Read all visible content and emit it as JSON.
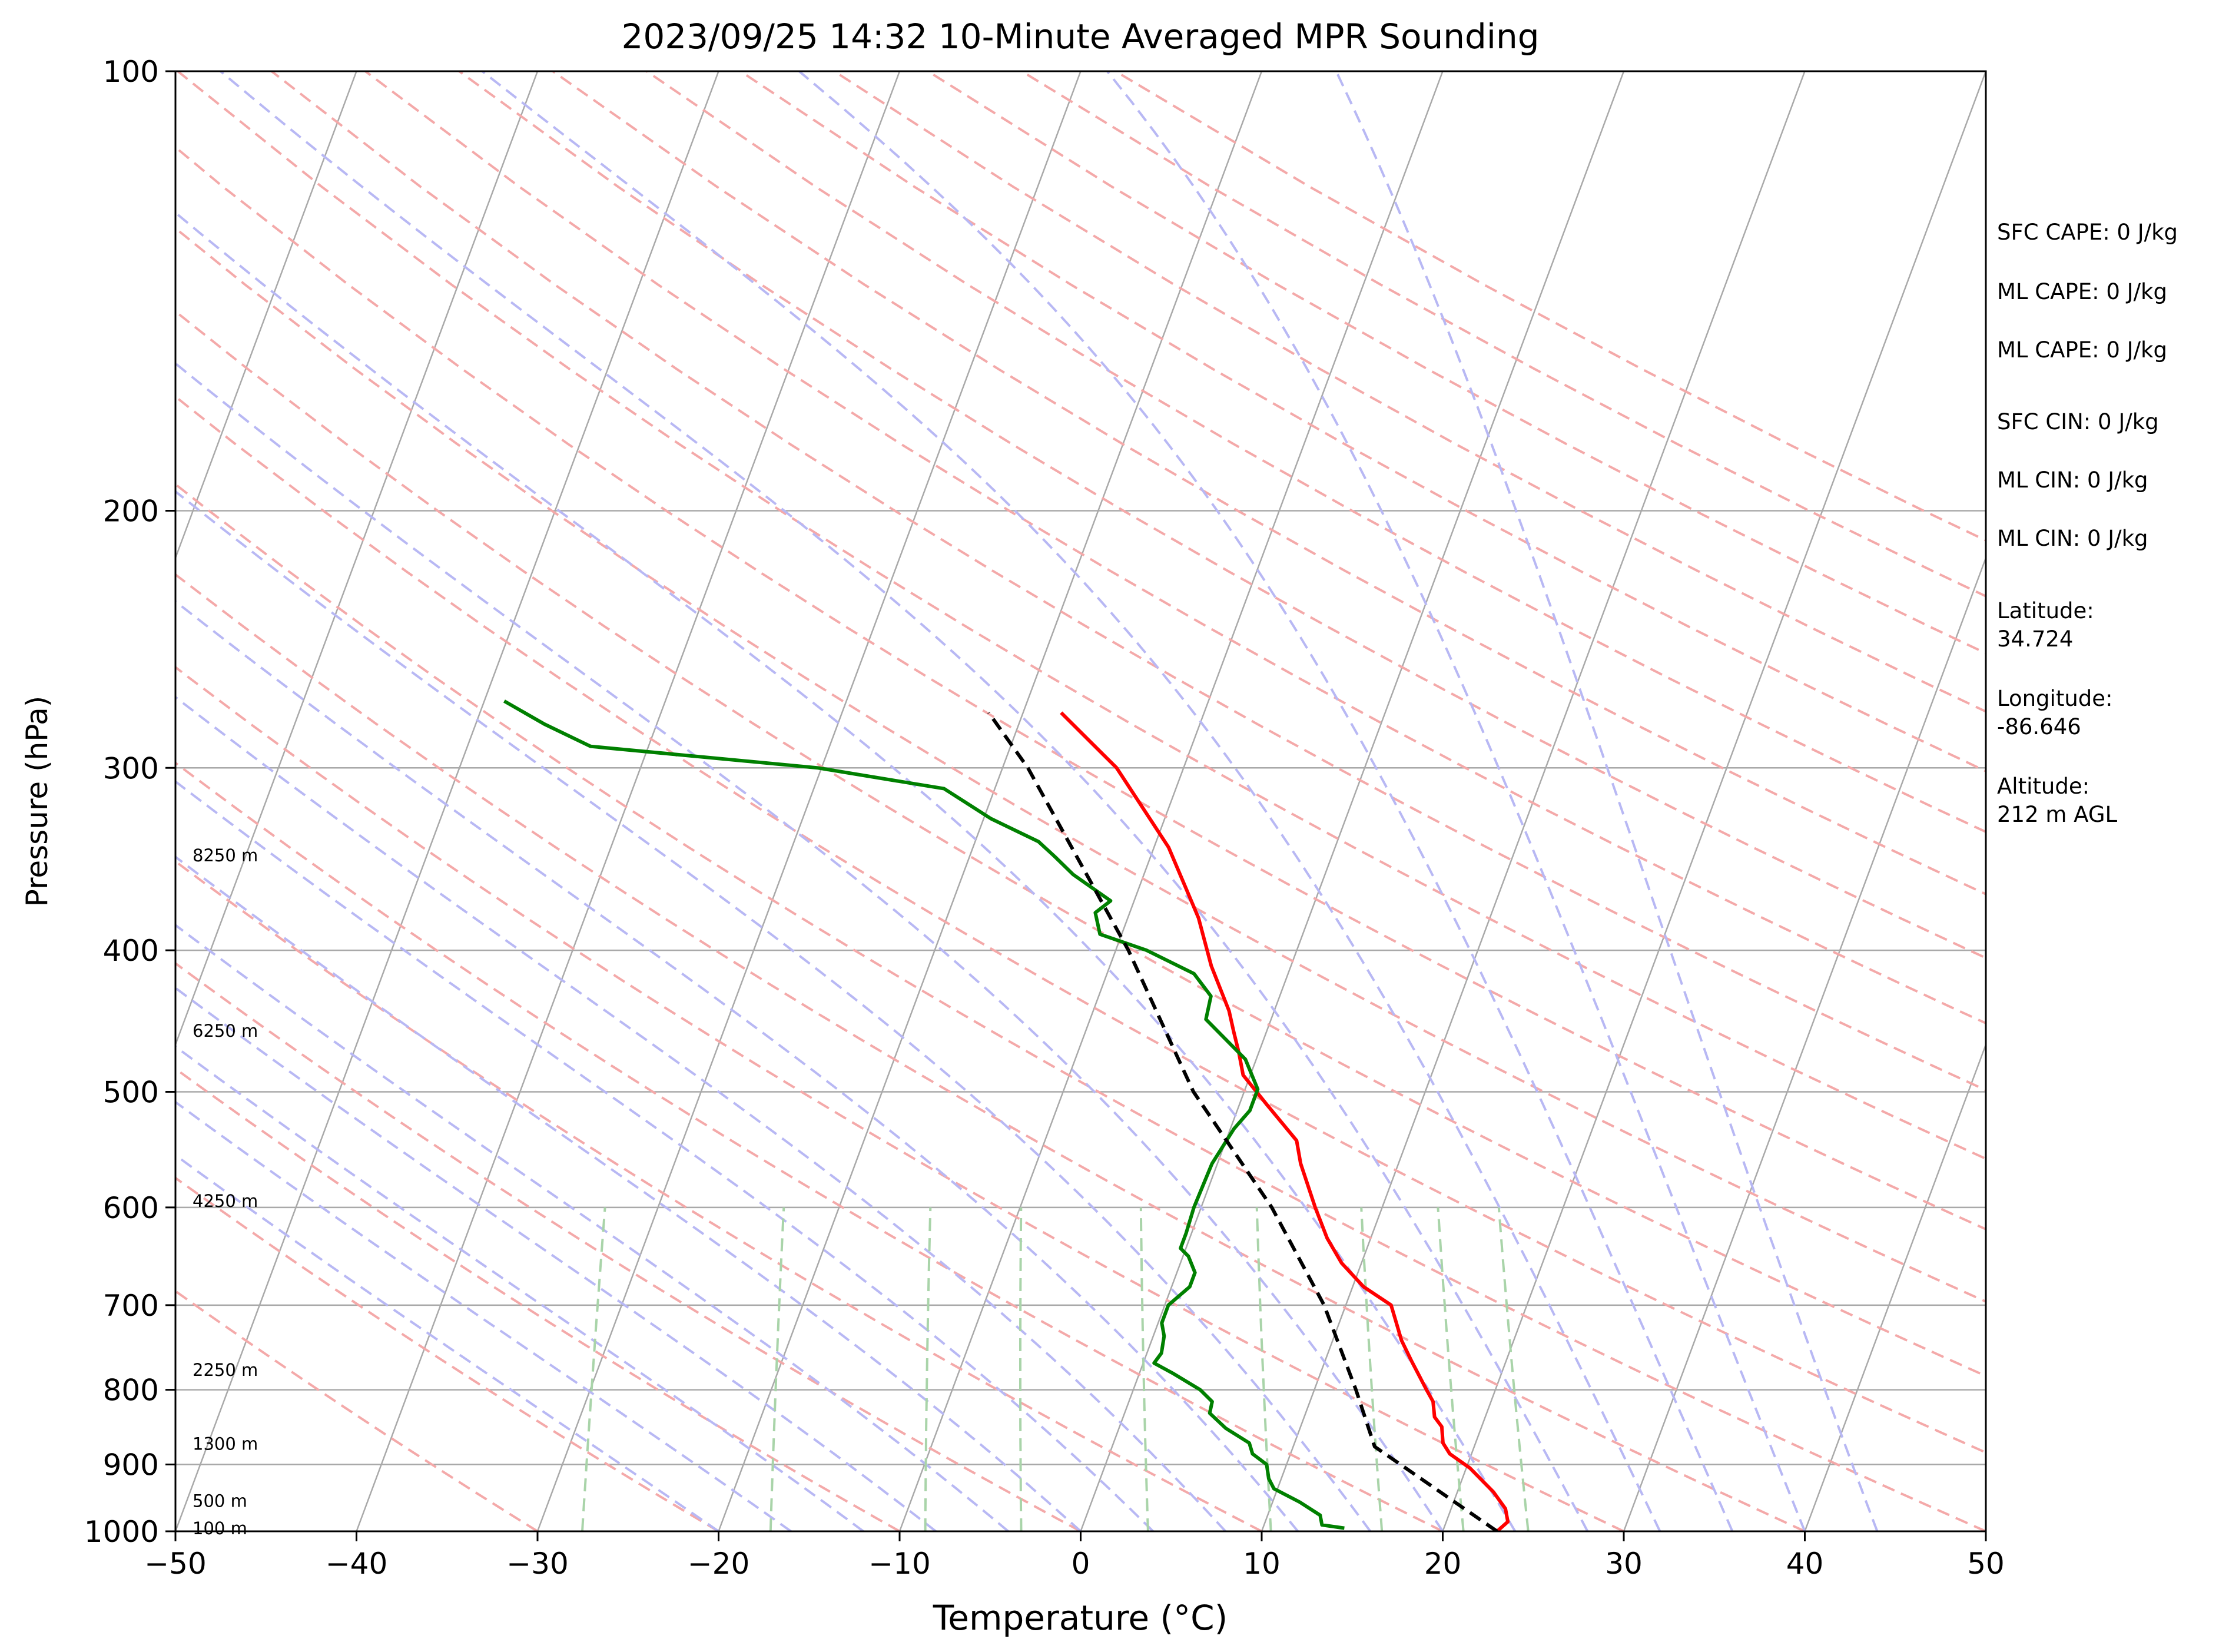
{
  "chart_data": {
    "type": "line",
    "subtype": "skew-t log-p sounding",
    "title": "2023/09/25 14:32 10-Minute Averaged MPR Sounding",
    "xlabel": "Temperature (°C)",
    "ylabel": "Pressure (hPa)",
    "xlim": [
      -50,
      50
    ],
    "ylim": [
      1000,
      100
    ],
    "y_scale": "log",
    "x_ticks": [
      "−50",
      "−40",
      "−30",
      "−20",
      "−10",
      "0",
      "10",
      "20",
      "30",
      "40",
      "50"
    ],
    "y_ticks": [
      "100",
      "200",
      "300",
      "400",
      "500",
      "600",
      "700",
      "800",
      "900",
      "1000"
    ],
    "grid": true,
    "height_labels": [
      {
        "text": "8250 m",
        "pressure": 345
      },
      {
        "text": "6250 m",
        "pressure": 455
      },
      {
        "text": "4250 m",
        "pressure": 595
      },
      {
        "text": "2250 m",
        "pressure": 777
      },
      {
        "text": "1300 m",
        "pressure": 873
      },
      {
        "text": "500 m",
        "pressure": 955
      },
      {
        "text": "100 m",
        "pressure": 997
      }
    ],
    "series": [
      {
        "role": "temperature",
        "color": "#ff0000",
        "style": "solid",
        "pressure": [
          1000,
          985,
          965,
          940,
          905,
          885,
          870,
          848,
          835,
          815,
          800,
          765,
          740,
          700,
          680,
          655,
          630,
          600,
          560,
          540,
          510,
          487,
          470,
          455,
          440,
          410,
          380,
          340,
          300,
          275
        ],
        "temperature": [
          23,
          23.4,
          23,
          22,
          20.2,
          18.8,
          18.2,
          17.8,
          17.2,
          16.8,
          16.2,
          14.8,
          13.8,
          12.5,
          10.6,
          8.9,
          7.6,
          6.3,
          4.6,
          3.9,
          1.5,
          -0.4,
          -1.1,
          -1.8,
          -2.5,
          -4.4,
          -6.1,
          -9.2,
          -13.7,
          -17.9
        ]
      },
      {
        "role": "dewpoint",
        "color": "#008000",
        "style": "solid",
        "pressure": [
          995,
          990,
          975,
          955,
          935,
          920,
          900,
          885,
          870,
          850,
          830,
          815,
          800,
          780,
          767,
          755,
          735,
          720,
          700,
          680,
          665,
          648,
          640,
          625,
          600,
          560,
          530,
          515,
          498,
          475,
          446,
          430,
          415,
          400,
          390,
          377,
          370,
          355,
          345,
          337,
          325,
          310,
          300,
          290,
          280,
          270
        ],
        "temperature": [
          14.5,
          13.2,
          12.9,
          11.5,
          9.8,
          9.3,
          8.9,
          7.9,
          7.5,
          5.9,
          4.7,
          4.6,
          3.7,
          1.9,
          0.6,
          0.8,
          0.6,
          0.2,
          0.2,
          1.0,
          1.0,
          0.3,
          -0.3,
          -0.3,
          -0.4,
          -0.3,
          0.2,
          0.7,
          0.7,
          -0.6,
          -3.6,
          -3.8,
          -5.2,
          -8.3,
          -11.2,
          -11.9,
          -11.3,
          -13.9,
          -15.3,
          -16.5,
          -19.6,
          -22.8,
          -30.2,
          -43.2,
          -46.2,
          -48.9
        ]
      },
      {
        "role": "parcel",
        "color": "#000000",
        "style": "dashed",
        "pressure": [
          1000,
          875,
          800,
          700,
          600,
          500,
          400,
          300,
          275
        ],
        "temperature": [
          23,
          14.5,
          12.3,
          8.8,
          3.9,
          -2.8,
          -9.3,
          -18.6,
          -21.9
        ]
      }
    ],
    "reference_lines": {
      "isotherm_color": "#a9a9a9",
      "dry_adiabat_color": "#f4a9a9",
      "moist_adiabat_color": "#b8b8f4",
      "mixing_ratio_color": "#a9d4a9"
    }
  },
  "side_info": {
    "sfc_cape": "SFC CAPE: 0 J/kg",
    "ml_cape_1": "ML CAPE: 0 J/kg",
    "ml_cape_2": "ML CAPE: 0 J/kg",
    "sfc_cin": "SFC CIN: 0 J/kg",
    "ml_cin_1": "ML CIN: 0 J/kg",
    "ml_cin_2": "ML CIN: 0 J/kg",
    "latitude_label": "Latitude:",
    "latitude_value": "34.724",
    "longitude_label": "Longitude:",
    "longitude_value": "-86.646",
    "altitude_label": "Altitude:",
    "altitude_value": "212 m AGL"
  }
}
